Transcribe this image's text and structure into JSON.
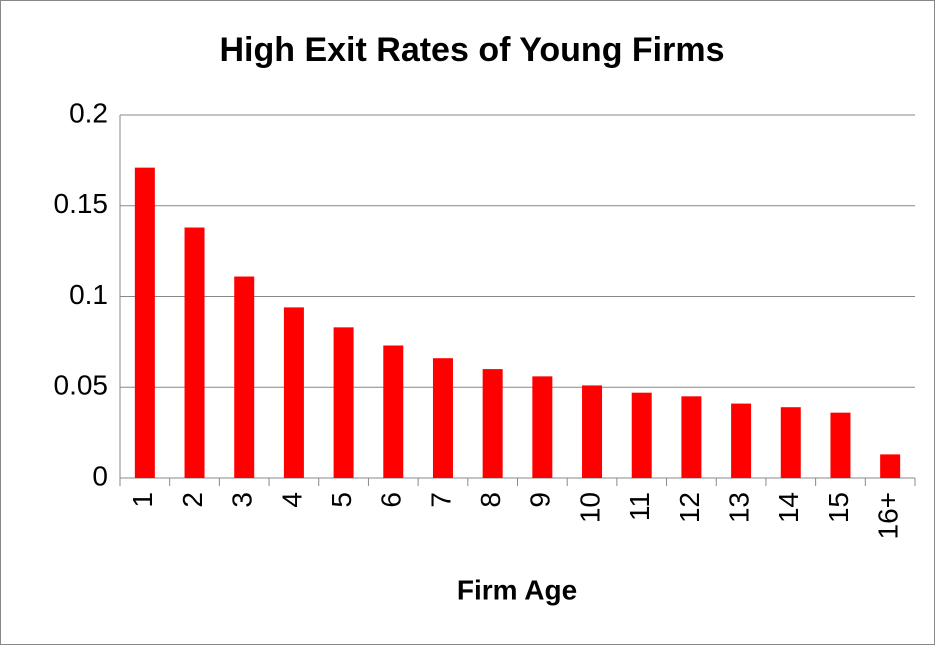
{
  "chart_data": {
    "type": "bar",
    "title": "High Exit Rates of Young Firms",
    "x_label": "Firm Age",
    "categories": [
      "1",
      "2",
      "3",
      "4",
      "5",
      "6",
      "7",
      "8",
      "9",
      "10",
      "11",
      "12",
      "13",
      "14",
      "15",
      "16+"
    ],
    "values": [
      0.171,
      0.138,
      0.111,
      0.094,
      0.083,
      0.073,
      0.066,
      0.06,
      0.056,
      0.051,
      0.047,
      0.045,
      0.041,
      0.039,
      0.036,
      0.013
    ],
    "color": "#ff0000",
    "ylim": [
      0,
      0.2
    ],
    "yticks": [
      0,
      0.05,
      0.1,
      0.15,
      0.2
    ],
    "grid": true
  }
}
